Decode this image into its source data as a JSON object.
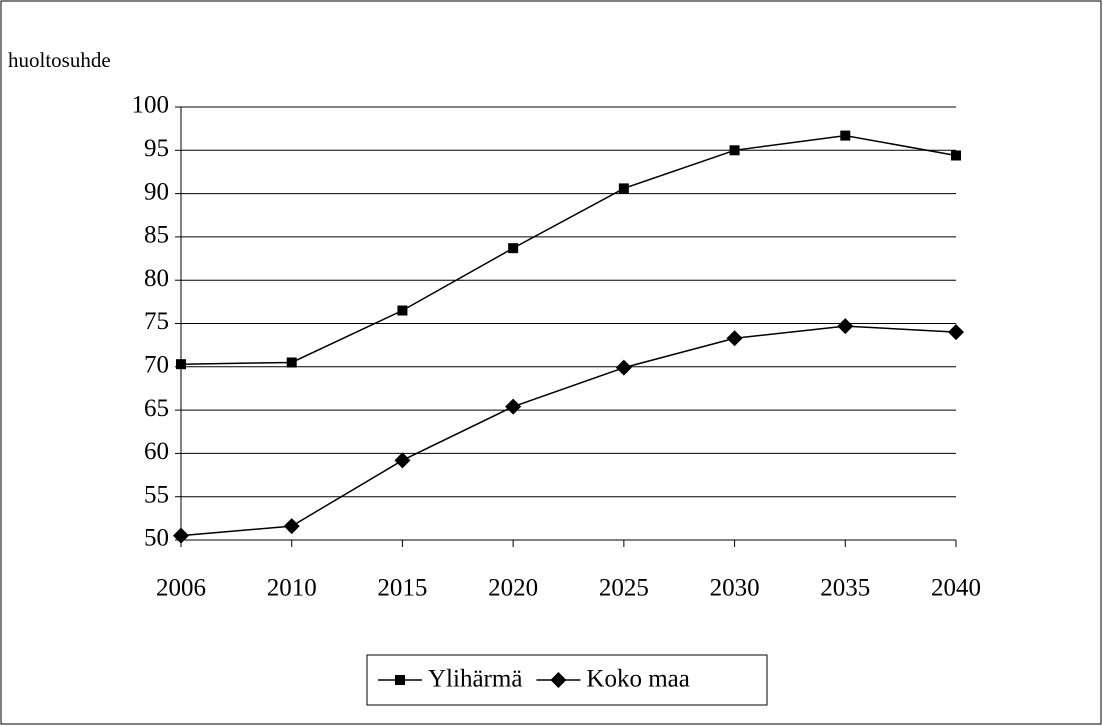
{
  "chart_data": {
    "type": "line",
    "y_label": "huoltosuhde",
    "categories": [
      "2006",
      "2010",
      "2015",
      "2020",
      "2025",
      "2030",
      "2035",
      "2040"
    ],
    "series": [
      {
        "name": "Ylihärmä",
        "color": "#000000",
        "marker": "square",
        "values": [
          70.3,
          70.5,
          76.5,
          83.7,
          90.6,
          95.0,
          96.7,
          94.4
        ]
      },
      {
        "name": "Koko maa",
        "color": "#000000",
        "marker": "diamond",
        "values": [
          50.5,
          51.6,
          59.2,
          65.4,
          69.9,
          73.3,
          74.7,
          74.0
        ]
      }
    ],
    "ylim": [
      50,
      100
    ],
    "yticks": [
      50,
      55,
      60,
      65,
      70,
      75,
      80,
      85,
      90,
      95,
      100
    ],
    "grid": true,
    "legend": "bottom"
  }
}
